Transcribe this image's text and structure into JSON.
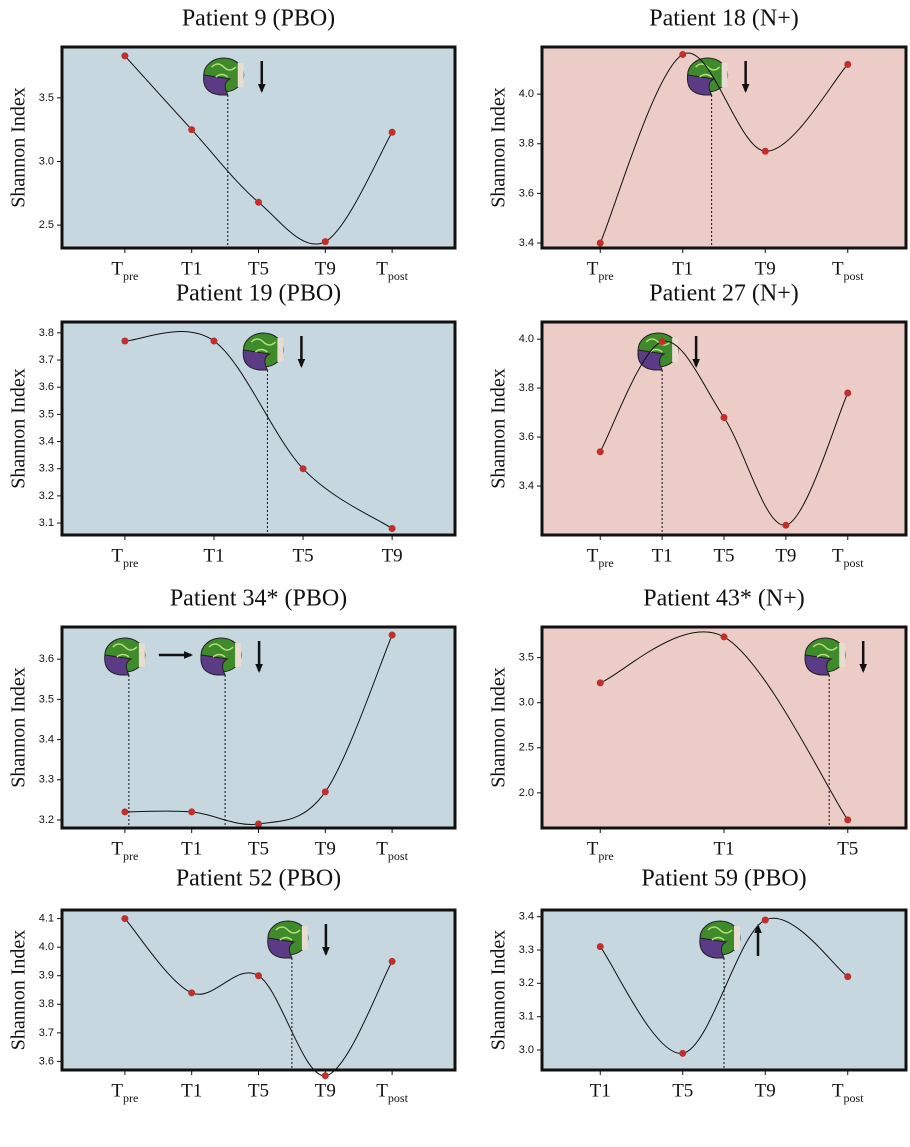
{
  "chart_data": [
    {
      "type": "line",
      "title": "Patient 9 (PBO)",
      "ylabel": "Shannon Index",
      "background": "#c6d7e0",
      "color": "#c0302a",
      "categories": [
        "Tpre",
        "T1",
        "T5",
        "T9",
        "Tpost"
      ],
      "values": [
        3.83,
        3.25,
        2.68,
        2.37,
        3.23
      ],
      "ylim": [
        2.32,
        3.9
      ],
      "yticks": [
        2.5,
        {
          "value": 3,
          "label": "3.0"
        },
        3.5
      ]
    },
    {
      "type": "line",
      "title": "Patient 18 (N+)",
      "ylabel": "Shannon Index",
      "background": "#ecccc7",
      "color": "#c0302a",
      "categories": [
        "Tpre",
        "T1",
        "T9",
        "Tpost"
      ],
      "values": [
        3.4,
        4.16,
        3.77,
        4.12
      ],
      "ylim": [
        3.38,
        4.19
      ],
      "yticks": [
        3.4,
        3.6,
        3.8,
        {
          "value": 4,
          "label": "4.0"
        }
      ]
    },
    {
      "type": "line",
      "title": "Patient 19 (PBO)",
      "ylabel": "Shannon Index",
      "background": "#c6d7e0",
      "color": "#c0302a",
      "categories": [
        "Tpre",
        "T1",
        "T5",
        "T9"
      ],
      "values": [
        3.77,
        3.77,
        3.3,
        3.08
      ],
      "ylim": [
        3.056,
        3.84
      ],
      "yticks": [
        3.1,
        3.2,
        3.3,
        3.4,
        3.5,
        3.6,
        3.7,
        3.8
      ]
    },
    {
      "type": "line",
      "title": "Patient 27 (N+)",
      "ylabel": "Shannon Index",
      "background": "#ecccc7",
      "color": "#c0302a",
      "categories": [
        "Tpre",
        "T1",
        "T5",
        "T9",
        "Tpost"
      ],
      "values": [
        3.54,
        3.99,
        3.68,
        3.24,
        3.78
      ],
      "ylim": [
        3.2,
        4.07
      ],
      "yticks": [
        3.4,
        3.6,
        3.8,
        {
          "value": 4,
          "label": "4.0"
        }
      ]
    },
    {
      "type": "line",
      "title": "Patient 34* (PBO)",
      "ylabel": "Shannon Index",
      "background": "#c6d7e0",
      "color": "#c0302a",
      "categories": [
        "Tpre",
        "T1",
        "T5",
        "T9",
        "Tpost"
      ],
      "values": [
        3.22,
        3.22,
        3.19,
        3.27,
        3.66
      ],
      "ylim": [
        3.18,
        3.68
      ],
      "yticks": [
        3.2,
        3.3,
        3.4,
        3.5,
        3.6
      ]
    },
    {
      "type": "line",
      "title": "Patient 43* (N+)",
      "ylabel": "Shannon Index",
      "background": "#ecccc7",
      "color": "#c0302a",
      "categories": [
        "Tpre",
        "T1",
        "T5"
      ],
      "values": [
        3.22,
        3.73,
        1.7
      ],
      "ylim": [
        1.61,
        3.84
      ],
      "yticks": [
        {
          "value": 2,
          "label": "2.0"
        },
        2.5,
        {
          "value": 3,
          "label": "3.0"
        },
        3.5
      ]
    },
    {
      "type": "line",
      "title": "Patient 52  (PBO)",
      "ylabel": "Shannon Index",
      "background": "#c6d7e0",
      "color": "#c0302a",
      "categories": [
        "Tpre",
        "T1",
        "T5",
        "T9",
        "Tpost"
      ],
      "values": [
        4.1,
        3.84,
        3.9,
        3.55,
        3.95
      ],
      "ylim": [
        3.57,
        4.13
      ],
      "yticks": [
        3.6,
        3.7,
        3.8,
        3.9,
        {
          "value": 4,
          "label": "4.0"
        },
        4.1
      ]
    },
    {
      "type": "line",
      "title": "Patient 59  (PBO)",
      "ylabel": "Shannon Index",
      "background": "#c6d7e0",
      "color": "#c0302a",
      "categories": [
        "T1",
        "T5",
        "T9",
        "Tpost"
      ],
      "values": [
        3.31,
        2.99,
        3.39,
        3.22
      ],
      "ylim": [
        2.94,
        3.42
      ],
      "yticks": [
        {
          "value": 3,
          "label": "3.0"
        },
        3.1,
        3.2,
        3.3,
        3.4
      ]
    }
  ]
}
